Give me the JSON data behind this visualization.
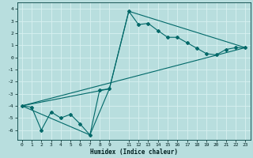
{
  "title": "",
  "xlabel": "Humidex (Indice chaleur)",
  "bg_color": "#b8dede",
  "plot_bg_color": "#b8dede",
  "grid_color": "#d8f0f0",
  "line_color": "#006868",
  "xlim": [
    -0.5,
    23.5
  ],
  "ylim": [
    -6.8,
    4.5
  ],
  "xticks": [
    0,
    1,
    2,
    3,
    4,
    5,
    6,
    7,
    8,
    9,
    11,
    12,
    13,
    14,
    15,
    16,
    17,
    18,
    19,
    20,
    21,
    22,
    23
  ],
  "yticks": [
    -6,
    -5,
    -4,
    -3,
    -2,
    -1,
    0,
    1,
    2,
    3,
    4
  ],
  "series1_x": [
    0,
    1,
    2,
    3,
    4,
    5,
    6,
    7,
    8,
    9,
    11,
    12,
    13,
    14,
    15,
    16,
    17,
    18,
    19,
    20,
    21,
    22,
    23
  ],
  "series1_y": [
    -4.0,
    -4.1,
    -6.0,
    -4.5,
    -5.0,
    -4.7,
    -5.5,
    -6.4,
    -2.7,
    -2.6,
    3.8,
    2.7,
    2.8,
    2.2,
    1.65,
    1.65,
    1.2,
    0.75,
    0.3,
    0.2,
    0.65,
    0.8,
    0.8
  ],
  "series2_x": [
    0,
    9,
    11,
    23
  ],
  "series2_y": [
    -4.0,
    -2.6,
    3.8,
    0.8
  ],
  "series3_x": [
    0,
    23
  ],
  "series3_y": [
    -4.0,
    0.8
  ],
  "series4_x": [
    0,
    7,
    9
  ],
  "series4_y": [
    -4.0,
    -6.4,
    -2.6
  ]
}
